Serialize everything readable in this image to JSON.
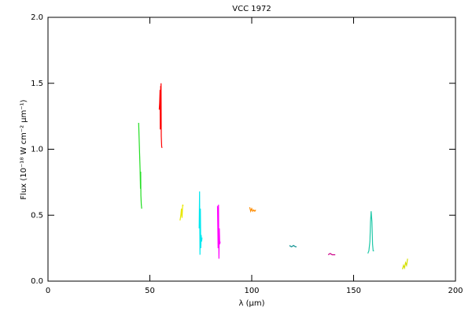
{
  "chart_data": {
    "type": "line",
    "title": "VCC 1972",
    "xlabel": "λ (μm)",
    "ylabel": "Flux (10⁻¹⁸ W cm⁻² μm⁻¹)",
    "xlim": [
      0,
      200
    ],
    "xticks": [
      0,
      50,
      100,
      150,
      200
    ],
    "ylim": [
      0,
      2.0
    ],
    "yticks": [
      {
        "value": 0,
        "label": "0.0"
      },
      {
        "value": 0.5,
        "label": "0.5"
      },
      {
        "value": 1.0,
        "label": "1.0"
      },
      {
        "value": 1.5,
        "label": "1.5"
      },
      {
        "value": 2.0,
        "label": "2.0"
      }
    ],
    "grid": false,
    "series": [
      {
        "color": "#22dd22",
        "x": [
          44.5,
          44.8,
          45.0,
          45.2,
          45.4,
          45.5,
          45.6,
          45.8,
          46.0
        ],
        "values": [
          1.2,
          1.05,
          0.95,
          0.85,
          0.7,
          0.83,
          0.65,
          0.58,
          0.55
        ]
      },
      {
        "color": "#ff0000",
        "x": [
          54.6,
          54.8,
          55.0,
          55.1,
          55.3,
          55.4,
          55.5,
          55.6,
          55.8,
          56.0
        ],
        "values": [
          1.3,
          1.35,
          1.45,
          1.15,
          1.48,
          1.2,
          1.5,
          1.1,
          1.02,
          1.01
        ]
      },
      {
        "color": "#e8e800",
        "x": [
          64.8,
          65.2,
          65.5,
          65.8,
          66.1,
          66.4
        ],
        "values": [
          0.46,
          0.5,
          0.55,
          0.48,
          0.58,
          0.57
        ]
      },
      {
        "color": "#00e8f0",
        "x": [
          74.2,
          74.4,
          74.6,
          74.8,
          75.0,
          75.2,
          75.4,
          75.6
        ],
        "values": [
          0.4,
          0.68,
          0.2,
          0.55,
          0.25,
          0.35,
          0.3,
          0.33
        ]
      },
      {
        "color": "#ff00ff",
        "x": [
          83.2,
          83.5,
          83.7,
          83.9,
          84.1,
          84.3,
          84.5
        ],
        "values": [
          0.57,
          0.25,
          0.58,
          0.17,
          0.4,
          0.28,
          0.3
        ]
      },
      {
        "color": "#ff8c00",
        "x": [
          99.0,
          99.5,
          100.0,
          100.5,
          101.0,
          101.5,
          102.0
        ],
        "values": [
          0.56,
          0.53,
          0.55,
          0.53,
          0.54,
          0.53,
          0.54
        ]
      },
      {
        "color": "#008b8b",
        "x": [
          118.5,
          119.5,
          120.5,
          121.5,
          122.0
        ],
        "values": [
          0.27,
          0.26,
          0.27,
          0.26,
          0.26
        ]
      },
      {
        "color": "#cc0088",
        "x": [
          137.5,
          138.5,
          139.5,
          140.5,
          141.0
        ],
        "values": [
          0.2,
          0.21,
          0.2,
          0.2,
          0.2
        ]
      },
      {
        "color": "#20c8a8",
        "x": [
          157.0,
          157.5,
          158.0,
          158.3,
          158.6,
          159.0,
          159.3,
          159.6,
          160.0
        ],
        "values": [
          0.21,
          0.23,
          0.3,
          0.45,
          0.53,
          0.45,
          0.28,
          0.23,
          0.23
        ]
      },
      {
        "color": "#d4e000",
        "x": [
          174.0,
          174.5,
          175.0,
          175.5,
          176.0,
          176.5
        ],
        "values": [
          0.09,
          0.12,
          0.1,
          0.14,
          0.12,
          0.17
        ]
      }
    ]
  }
}
